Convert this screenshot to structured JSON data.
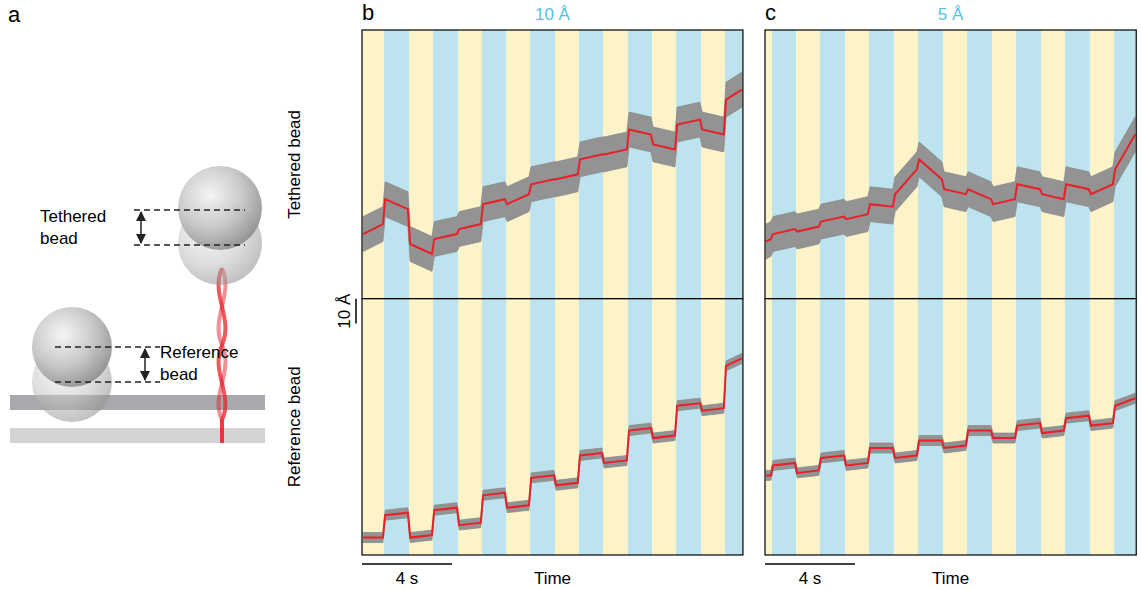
{
  "diagram": {
    "label": "a",
    "texts": [
      "Tethered bead",
      "Reference bead"
    ]
  },
  "row_labels": [
    "Tethered bead",
    "Reference bead"
  ],
  "chart_data": [
    {
      "type": "line",
      "label": "b",
      "title": "10 Å",
      "xlabel": "Time",
      "xlim": [
        0,
        16.93
      ],
      "stripes": {
        "edges": [
          0,
          0.98,
          2.09,
          3.16,
          4.27,
          5.33,
          6.4,
          7.47,
          8.58,
          9.64,
          10.71,
          11.82,
          12.89,
          13.96,
          15.07,
          16.13,
          16.93
        ],
        "colors": [
          "#fdf3c8",
          "#bde3ef"
        ]
      },
      "x_scale_bar": {
        "value": 4,
        "label": "4 s"
      },
      "y_scale_bar": {
        "value": 10,
        "label": "10 Å"
      },
      "rows": [
        {
          "ylim": [
            0,
            108
          ],
          "series": [
            {
              "color": "#e8202a",
              "spread": 7,
              "x": [
                0.05,
                0.93,
                1.03,
                2.04,
                2.14,
                3.11,
                3.21,
                4.22,
                4.32,
                5.28,
                5.38,
                6.35,
                6.45,
                7.42,
                7.52,
                8.53,
                8.63,
                9.59,
                9.69,
                10.66,
                10.76,
                11.77,
                11.87,
                12.84,
                12.94,
                13.91,
                14.01,
                15.02,
                15.12,
                16.08,
                16.18,
                16.88
              ],
              "values": [
                26,
                30,
                40,
                36,
                22,
                18,
                24,
                26,
                28,
                30,
                38,
                40,
                38,
                42,
                46,
                48,
                48,
                50,
                56,
                58,
                58,
                60,
                68,
                66,
                62,
                60,
                70,
                72,
                68,
                66,
                80,
                84
              ]
            }
          ]
        },
        {
          "ylim": [
            0,
            103
          ],
          "series": [
            {
              "color": "#e8202a",
              "spread": 2,
              "x": [
                0.05,
                0.93,
                1.03,
                2.04,
                2.14,
                3.11,
                3.21,
                4.22,
                4.32,
                5.28,
                5.38,
                6.35,
                6.45,
                7.42,
                7.52,
                8.53,
                8.63,
                9.59,
                9.69,
                10.66,
                10.76,
                11.77,
                11.87,
                12.84,
                12.94,
                13.91,
                14.01,
                15.02,
                15.12,
                16.08,
                16.18,
                16.88
              ],
              "values": [
                7,
                7,
                16,
                17,
                7,
                8,
                18,
                19,
                12,
                13,
                24,
                25,
                19,
                20,
                31,
                32,
                28,
                29,
                40,
                41,
                37,
                38,
                50,
                51,
                47,
                48,
                60,
                61,
                58,
                59,
                76,
                79
              ]
            }
          ]
        }
      ]
    },
    {
      "type": "line",
      "label": "c",
      "title": "5 Å",
      "xlabel": "Time",
      "xlim": [
        0,
        16.5
      ],
      "stripes": {
        "edges": [
          0,
          0.31,
          1.38,
          2.44,
          3.56,
          4.62,
          5.73,
          6.8,
          7.91,
          8.98,
          10.09,
          11.16,
          12.27,
          13.33,
          14.44,
          15.51,
          16.5
        ],
        "colors": [
          "#fdf3c8",
          "#bde3ef"
        ]
      },
      "x_scale_bar": {
        "value": 4,
        "label": "4 s"
      },
      "rows": [
        {
          "ylim": [
            0,
            108
          ],
          "series": [
            {
              "color": "#e8202a",
              "spread": 7,
              "x": [
                0.05,
                0.26,
                0.36,
                1.33,
                1.43,
                2.39,
                2.49,
                3.51,
                3.61,
                4.57,
                4.67,
                5.68,
                5.78,
                6.75,
                6.85,
                7.86,
                7.96,
                8.93,
                9.03,
                10.04,
                10.14,
                11.11,
                11.21,
                12.22,
                12.32,
                13.28,
                13.38,
                14.39,
                14.49,
                15.46,
                15.56,
                16.45
              ],
              "values": [
                23,
                24,
                26,
                28,
                27,
                29,
                31,
                33,
                32,
                34,
                38,
                37,
                42,
                52,
                56,
                48,
                44,
                42,
                44,
                40,
                38,
                40,
                46,
                44,
                42,
                40,
                46,
                44,
                42,
                46,
                52,
                66
              ]
            }
          ]
        },
        {
          "ylim": [
            0,
            103
          ],
          "series": [
            {
              "color": "#e8202a",
              "spread": 2,
              "x": [
                0.05,
                0.26,
                0.36,
                1.33,
                1.43,
                2.39,
                2.49,
                3.51,
                3.61,
                4.57,
                4.67,
                5.68,
                5.78,
                6.75,
                6.85,
                7.86,
                7.96,
                8.93,
                9.03,
                10.04,
                10.14,
                11.11,
                11.21,
                12.22,
                12.32,
                13.28,
                13.38,
                14.39,
                14.49,
                15.46,
                15.56,
                16.45
              ],
              "values": [
                32,
                32,
                36,
                37,
                33,
                34,
                39,
                40,
                36,
                37,
                43,
                43,
                39,
                40,
                46,
                46,
                43,
                44,
                50,
                50,
                47,
                47,
                52,
                53,
                49,
                50,
                55,
                56,
                52,
                53,
                60,
                63
              ]
            }
          ]
        }
      ]
    }
  ]
}
